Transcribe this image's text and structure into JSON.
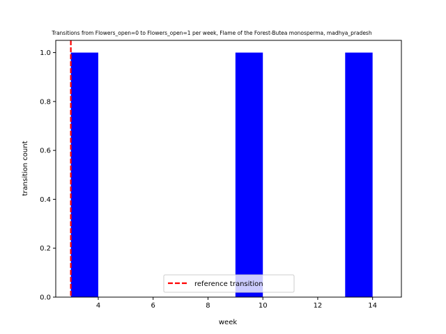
{
  "chart_data": {
    "type": "bar",
    "title": "Transitions from Flowers_open=0 to Flowers_open=1 per week, Flame of the Forest-Butea monosperma, madhya_pradesh",
    "xlabel": "week",
    "ylabel": "transition count",
    "xlim": [
      2.45,
      15.05
    ],
    "ylim": [
      0,
      1.05
    ],
    "x_ticks": [
      4,
      6,
      8,
      10,
      12,
      14
    ],
    "y_ticks": [
      0.0,
      0.2,
      0.4,
      0.6,
      0.8,
      1.0
    ],
    "bar_color": "#0000ff",
    "bars": [
      {
        "x_start": 3,
        "x_end": 4,
        "value": 1.0
      },
      {
        "x_start": 9,
        "x_end": 10,
        "value": 1.0
      },
      {
        "x_start": 13,
        "x_end": 14,
        "value": 1.0
      }
    ],
    "reference_line": {
      "x": 3,
      "color": "#ff0000",
      "style": "dashed",
      "label": "reference transition"
    },
    "legend": {
      "placement": "lower center",
      "entries": [
        "reference transition"
      ]
    },
    "grid": false
  }
}
